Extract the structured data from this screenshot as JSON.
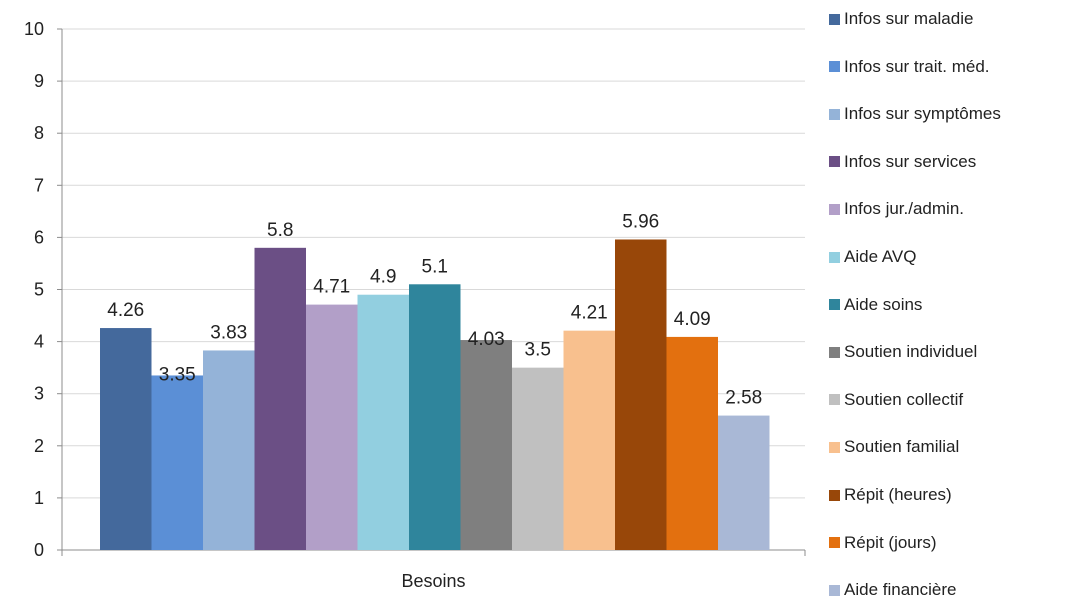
{
  "chart_data": {
    "type": "bar",
    "categories": [
      "Besoins"
    ],
    "series": [
      {
        "name": "Infos sur maladie",
        "values": [
          4.26
        ],
        "color": "#44699c"
      },
      {
        "name": "Infos sur trait. méd.",
        "values": [
          3.35
        ],
        "color": "#5b8fd6"
      },
      {
        "name": "Infos sur symptômes",
        "values": [
          3.83
        ],
        "color": "#94b3d8"
      },
      {
        "name": "Infos sur services",
        "values": [
          5.8
        ],
        "color": "#6b4f85"
      },
      {
        "name": "Infos jur./admin.",
        "values": [
          4.71
        ],
        "color": "#b29fc8"
      },
      {
        "name": "Aide AVQ",
        "values": [
          4.9
        ],
        "color": "#92cfe0"
      },
      {
        "name": "Aide soins",
        "values": [
          5.1
        ],
        "color": "#2f859c"
      },
      {
        "name": "Soutien individuel",
        "values": [
          4.03
        ],
        "color": "#7f7f7f"
      },
      {
        "name": "Soutien collectif",
        "values": [
          3.5
        ],
        "color": "#c0c0c0"
      },
      {
        "name": "Soutien familial",
        "values": [
          4.21
        ],
        "color": "#f8c08e"
      },
      {
        "name": "Répit (heures)",
        "values": [
          5.96
        ],
        "color": "#984709"
      },
      {
        "name": "Répit (jours)",
        "values": [
          4.09
        ],
        "color": "#e3700f"
      },
      {
        "name": "Aide financière",
        "values": [
          2.58
        ],
        "color": "#a9b8d6"
      }
    ],
    "data_labels": [
      "4.26",
      "3.35",
      "3.83",
      "5.8",
      "4.71",
      "4.9",
      "5.1",
      "4.03",
      "3.5",
      "4.21",
      "5.96",
      "4.09",
      "2.58"
    ],
    "y_ticks": [
      "0",
      "1",
      "2",
      "3",
      "4",
      "5",
      "6",
      "7",
      "8",
      "9",
      "10"
    ],
    "ylim": [
      0,
      10
    ],
    "grid": true,
    "legend_position": "right",
    "title": "",
    "xlabel": "",
    "ylabel": ""
  }
}
